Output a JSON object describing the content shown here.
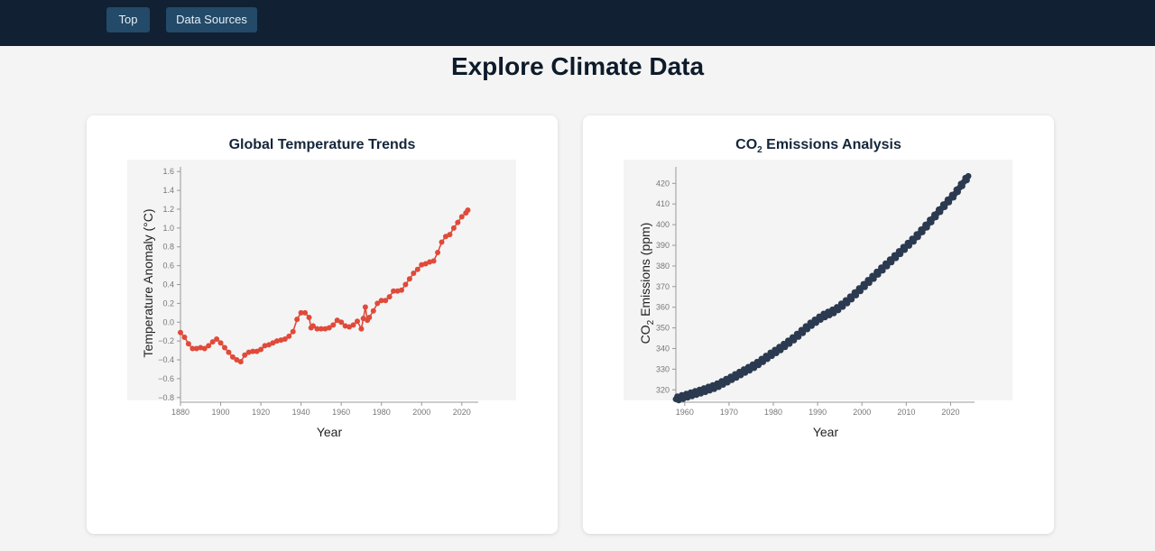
{
  "nav": {
    "top_label": "Top",
    "sources_label": "Data Sources"
  },
  "page": {
    "title": "Explore Climate Data"
  },
  "charts": {
    "temperature": {
      "title": "Global Temperature Trends",
      "xlabel": "Year",
      "ylabel": "Temperature Anomaly (°C)",
      "color": "#e04a3a"
    },
    "co2": {
      "title_prefix": "CO",
      "title_sub": "2",
      "title_suffix": " Emissions Analysis",
      "xlabel": "Year",
      "ylabel_prefix": "CO",
      "ylabel_sub": "2",
      "ylabel_suffix": " Emissions (ppm)",
      "color": "#2b3a50"
    }
  },
  "chart_data": [
    {
      "type": "line",
      "title": "Global Temperature Trends",
      "xlabel": "Year",
      "ylabel": "Temperature Anomaly (°C)",
      "xlim": [
        1880,
        2024
      ],
      "ylim": [
        -0.85,
        1.65
      ],
      "xticks": [
        1880,
        1900,
        1920,
        1940,
        1960,
        1980,
        2000,
        2020
      ],
      "yticks": [
        -0.8,
        -0.6,
        -0.4,
        -0.2,
        0.0,
        0.2,
        0.4,
        0.6,
        0.8,
        1.0,
        1.2,
        1.4,
        1.6
      ],
      "ytick_labels": [
        "−0.8",
        "−0.6",
        "−0.4",
        "−0.2",
        "0.0",
        "0.2",
        "0.4",
        "0.6",
        "0.8",
        "1.0",
        "1.2",
        "1.4",
        "1.6"
      ],
      "grid": false,
      "markers": true,
      "series": [
        {
          "x": [
            1880,
            1882,
            1884,
            1886,
            1888,
            1890,
            1892,
            1894,
            1896,
            1898,
            1900,
            1902,
            1904,
            1906,
            1908,
            1910,
            1912,
            1914,
            1916,
            1918,
            1920,
            1922,
            1924,
            1926,
            1928,
            1930,
            1932,
            1934,
            1936,
            1938,
            1940,
            1942,
            1944,
            1945,
            1946,
            1948,
            1950,
            1952,
            1954,
            1956,
            1958,
            1960,
            1962,
            1964,
            1966,
            1968,
            1970,
            1971,
            1972,
            1973,
            1974,
            1976,
            1978,
            1980,
            1982,
            1984,
            1986,
            1988,
            1990,
            1992,
            1994,
            1996,
            1998,
            2000,
            2002,
            2004,
            2006,
            2008,
            2010,
            2012,
            2014,
            2016,
            2018,
            2020,
            2022,
            2023
          ],
          "y": [
            -0.11,
            -0.16,
            -0.23,
            -0.28,
            -0.28,
            -0.27,
            -0.28,
            -0.25,
            -0.21,
            -0.18,
            -0.22,
            -0.27,
            -0.32,
            -0.37,
            -0.4,
            -0.42,
            -0.35,
            -0.32,
            -0.31,
            -0.31,
            -0.29,
            -0.25,
            -0.24,
            -0.22,
            -0.2,
            -0.19,
            -0.18,
            -0.15,
            -0.1,
            0.03,
            0.1,
            0.1,
            0.05,
            -0.06,
            -0.04,
            -0.07,
            -0.07,
            -0.07,
            -0.06,
            -0.03,
            0.02,
            0.0,
            -0.04,
            -0.05,
            -0.03,
            0.01,
            -0.07,
            0.04,
            0.16,
            0.02,
            0.05,
            0.12,
            0.2,
            0.23,
            0.23,
            0.27,
            0.33,
            0.33,
            0.34,
            0.4,
            0.46,
            0.52,
            0.56,
            0.61,
            0.62,
            0.64,
            0.65,
            0.74,
            0.85,
            0.91,
            0.93,
            1.0,
            1.06,
            1.12,
            1.16,
            1.19
          ]
        }
      ]
    },
    {
      "type": "scatter",
      "title": "CO2 Emissions Analysis",
      "xlabel": "Year",
      "ylabel": "CO2 Emissions (ppm)",
      "xlim": [
        1958,
        2025
      ],
      "ylim": [
        314,
        428
      ],
      "xticks": [
        1960,
        1970,
        1980,
        1990,
        2000,
        2010,
        2020
      ],
      "yticks": [
        320,
        330,
        340,
        350,
        360,
        370,
        380,
        390,
        400,
        410,
        420
      ],
      "grid": false,
      "series": [
        {
          "x": [
            1958,
            1961,
            1964,
            1967,
            1970,
            1973,
            1976,
            1979,
            1982,
            1985,
            1988,
            1991,
            1994,
            1997,
            2000,
            2003,
            2006,
            2009,
            2012,
            2015,
            2018,
            2021,
            2024
          ],
          "y": [
            315.5,
            317.5,
            319.5,
            321.7,
            325.0,
            328.5,
            332.0,
            336.5,
            340.7,
            345.5,
            351.0,
            355.5,
            358.5,
            363.5,
            369.5,
            375.5,
            381.5,
            387.5,
            393.5,
            400.5,
            408.0,
            415.0,
            423.5
          ]
        }
      ]
    }
  ]
}
